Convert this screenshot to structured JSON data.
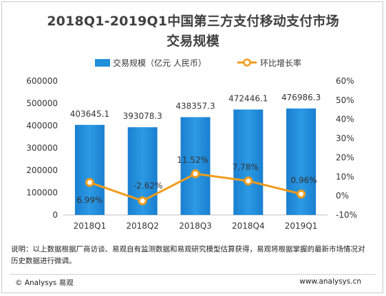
{
  "chart_data": {
    "type": "bar+line",
    "title": "2018Q1-2019Q1中国第三方支付移动支付市场",
    "subtitle": "交易规模",
    "categories": [
      "2018Q1",
      "2018Q2",
      "2018Q3",
      "2018Q4",
      "2019Q1"
    ],
    "series": [
      {
        "name": "交易规模（亿元 人民币）",
        "type": "bar",
        "axis": "left",
        "values": [
          403645.1,
          393078.3,
          438357.3,
          472446.1,
          476986.3
        ],
        "labels": [
          "403645.1",
          "393078.3",
          "438357.3",
          "472446.1",
          "476986.3"
        ],
        "color": "#1e8fdb"
      },
      {
        "name": "环比增长率",
        "type": "line",
        "axis": "right",
        "values": [
          6.99,
          -2.62,
          11.52,
          7.78,
          0.96
        ],
        "labels": [
          "6.99%",
          "-2.62%",
          "11.52%",
          "7.78%",
          "0.96%"
        ],
        "color": "#f29b1a"
      }
    ],
    "y_left": {
      "range": [
        0,
        600000
      ],
      "ticks": [
        "0",
        "100000",
        "200000",
        "300000",
        "400000",
        "500000",
        "600000"
      ]
    },
    "y_right": {
      "range": [
        -10,
        60
      ],
      "ticks": [
        "-10%",
        "0%",
        "10%",
        "20%",
        "30%",
        "40%",
        "50%",
        "60%"
      ]
    },
    "legend_position": "top",
    "grid": false
  },
  "note": "说明：以上数据根据厂商访谈、易观自有监测数据和易观研究模型估算获得，易观将根据掌握的最新市场情况对历史数据进行微调。",
  "footer": {
    "left": "© Analysys 易观",
    "right": "www.analysys.cn"
  }
}
